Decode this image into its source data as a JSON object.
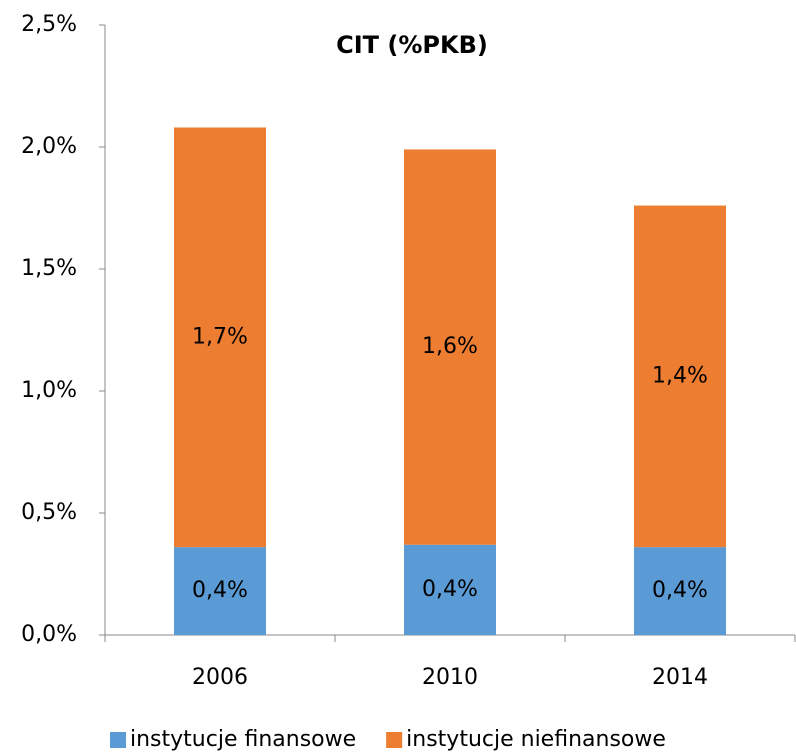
{
  "chart_data": {
    "type": "stacked_bar",
    "title": "CIT (%PKB)",
    "categories": [
      "2006",
      "2010",
      "2014"
    ],
    "series": [
      {
        "name": "instytucje finansowe",
        "color": "#5b9bd5",
        "values": [
          0.36,
          0.37,
          0.36
        ],
        "value_labels": [
          "0,4%",
          "0,4%",
          "0,4%"
        ]
      },
      {
        "name": "instytucje niefinansowe",
        "color": "#ed7d31",
        "values": [
          1.72,
          1.62,
          1.4
        ],
        "value_labels": [
          "1,7%",
          "1,6%",
          "1,4%"
        ]
      }
    ],
    "ylim": [
      0,
      2.5
    ],
    "yticks": [
      {
        "value": 0,
        "label": "0,0%"
      },
      {
        "value": 0.5,
        "label": "0,5%"
      },
      {
        "value": 1,
        "label": "1,0%"
      },
      {
        "value": 1.5,
        "label": "1,5%"
      },
      {
        "value": 2,
        "label": "2,0%"
      },
      {
        "value": 2.5,
        "label": "2,5%"
      }
    ],
    "grid": false,
    "legend": "bottom"
  }
}
